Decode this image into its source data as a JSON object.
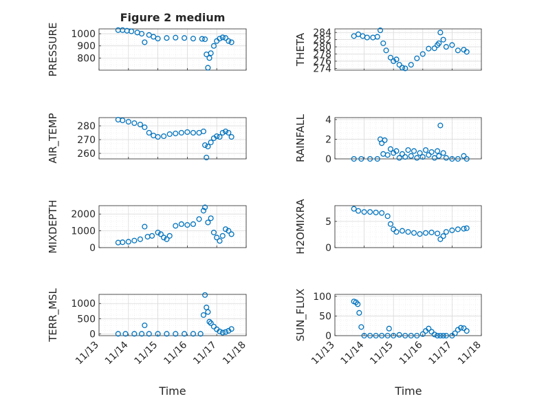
{
  "figure": {
    "title": "Figure 2 medium",
    "x_ticks": [
      "11/13",
      "11/14",
      "11/15",
      "11/16",
      "11/17",
      "11/18"
    ],
    "xlabel": "Time",
    "marker_color": "#0072BD",
    "grid": true
  },
  "chart_data": [
    {
      "type": "scatter",
      "title": "Figure 2 medium",
      "ylabel": "PRESSURE",
      "yticks": [
        800,
        900,
        1000
      ],
      "ylim": [
        700,
        1040
      ],
      "xlim": [
        13,
        18
      ],
      "x_ticks": [
        "11/13",
        "11/14",
        "11/15",
        "11/16",
        "11/17",
        "11/18"
      ],
      "series": [
        {
          "x": [
            13.65,
            13.8,
            13.95,
            14.1,
            14.3,
            14.45,
            14.55,
            14.7,
            14.85,
            15.0,
            15.3,
            15.6,
            15.9,
            16.2,
            16.5,
            16.6,
            16.65,
            16.7,
            16.75,
            16.8,
            16.9,
            17.0,
            17.1,
            17.2,
            17.3,
            17.4,
            17.5
          ],
          "y": [
            1030,
            1030,
            1025,
            1020,
            1010,
            1000,
            930,
            990,
            975,
            960,
            965,
            968,
            965,
            960,
            958,
            955,
            830,
            720,
            800,
            840,
            900,
            940,
            960,
            970,
            965,
            940,
            930
          ]
        }
      ]
    },
    {
      "type": "scatter",
      "ylabel": "THETA",
      "yticks": [
        274,
        276,
        278,
        280,
        282,
        284
      ],
      "ylim": [
        273.5,
        285
      ],
      "xlim": [
        13,
        18
      ],
      "x_ticks": [
        "11/13",
        "11/14",
        "11/15",
        "11/16",
        "11/17",
        "11/18"
      ],
      "series": [
        {
          "x": [
            13.65,
            13.8,
            13.95,
            14.1,
            14.3,
            14.45,
            14.55,
            14.65,
            14.75,
            14.9,
            15.0,
            15.1,
            15.2,
            15.3,
            15.4,
            15.6,
            15.8,
            16.0,
            16.2,
            16.4,
            16.5,
            16.55,
            16.6,
            16.7,
            16.8,
            17.0,
            17.2,
            17.4,
            17.5
          ],
          "y": [
            283.0,
            283.5,
            283,
            282.6,
            282.6,
            282.8,
            284.6,
            281,
            279,
            277,
            276,
            276.5,
            275,
            274.2,
            274,
            275,
            276.8,
            278,
            279.5,
            279.6,
            280.5,
            281,
            284,
            282,
            280,
            280.5,
            279,
            279.2,
            278.6
          ]
        }
      ]
    },
    {
      "type": "scatter",
      "ylabel": "AIR_TEMP",
      "yticks": [
        260,
        270,
        280
      ],
      "ylim": [
        256,
        286
      ],
      "xlim": [
        13,
        18
      ],
      "x_ticks": [
        "11/13",
        "11/14",
        "11/15",
        "11/16",
        "11/17",
        "11/18"
      ],
      "series": [
        {
          "x": [
            13.65,
            13.8,
            14.0,
            14.2,
            14.4,
            14.55,
            14.7,
            14.85,
            15.0,
            15.2,
            15.4,
            15.6,
            15.8,
            16.0,
            16.2,
            16.4,
            16.55,
            16.6,
            16.65,
            16.7,
            16.8,
            16.9,
            17.0,
            17.1,
            17.2,
            17.3,
            17.4,
            17.5
          ],
          "y": [
            284.5,
            284,
            283,
            282,
            281,
            279,
            275,
            273,
            272,
            272.5,
            274,
            274.5,
            275,
            275.5,
            275,
            275,
            276,
            266,
            257,
            265,
            268,
            271,
            272.5,
            272,
            275,
            276,
            275,
            272
          ]
        }
      ]
    },
    {
      "type": "scatter",
      "ylabel": "RAINFALL",
      "yticks": [
        0,
        2,
        4
      ],
      "ylim": [
        0,
        4.2
      ],
      "xlim": [
        13,
        18
      ],
      "x_ticks": [
        "11/13",
        "11/14",
        "11/15",
        "11/16",
        "11/17",
        "11/18"
      ],
      "series": [
        {
          "x": [
            13.65,
            13.9,
            14.2,
            14.45,
            14.55,
            14.6,
            14.65,
            14.7,
            14.8,
            14.9,
            15.0,
            15.1,
            15.2,
            15.3,
            15.4,
            15.5,
            15.6,
            15.7,
            15.8,
            15.9,
            16.0,
            16.1,
            16.2,
            16.3,
            16.4,
            16.5,
            16.55,
            16.6,
            16.7,
            16.8,
            17.0,
            17.2,
            17.4,
            17.5
          ],
          "y": [
            0,
            0,
            0,
            0,
            2.0,
            1.6,
            0.5,
            1.9,
            0.4,
            1.0,
            0.6,
            0.8,
            0.1,
            0.5,
            0.2,
            0.9,
            0.3,
            0.8,
            0.1,
            0.6,
            0.2,
            0.9,
            0.4,
            0.7,
            0.1,
            0.8,
            0.3,
            3.4,
            0.6,
            0.1,
            0,
            0,
            0.3,
            0
          ]
        }
      ]
    },
    {
      "type": "scatter",
      "ylabel": "MIXDEPTH",
      "yticks": [
        0,
        1000,
        2000
      ],
      "ylim": [
        0,
        2500
      ],
      "xlim": [
        13,
        18
      ],
      "x_ticks": [
        "11/13",
        "11/14",
        "11/15",
        "11/16",
        "11/17",
        "11/18"
      ],
      "series": [
        {
          "x": [
            13.65,
            13.8,
            14.0,
            14.2,
            14.4,
            14.55,
            14.65,
            14.8,
            15.0,
            15.1,
            15.2,
            15.3,
            15.4,
            15.6,
            15.8,
            16.0,
            16.2,
            16.4,
            16.55,
            16.6,
            16.7,
            16.8,
            16.9,
            17.0,
            17.1,
            17.2,
            17.3,
            17.4,
            17.5
          ],
          "y": [
            300,
            320,
            350,
            420,
            500,
            1250,
            650,
            700,
            900,
            800,
            600,
            500,
            700,
            1300,
            1400,
            1350,
            1400,
            1700,
            2200,
            2400,
            1500,
            1750,
            900,
            600,
            400,
            700,
            1100,
            1000,
            800
          ]
        }
      ]
    },
    {
      "type": "scatter",
      "ylabel": "H2OMIXRA",
      "yticks": [
        0,
        5
      ],
      "ylim": [
        0,
        8
      ],
      "xlim": [
        13,
        18
      ],
      "x_ticks": [
        "11/13",
        "11/14",
        "11/15",
        "11/16",
        "11/17",
        "11/18"
      ],
      "series": [
        {
          "x": [
            13.65,
            13.8,
            14.0,
            14.2,
            14.4,
            14.6,
            14.8,
            14.9,
            15.0,
            15.1,
            15.3,
            15.5,
            15.7,
            15.9,
            16.1,
            16.3,
            16.5,
            16.6,
            16.7,
            16.8,
            17.0,
            17.2,
            17.4,
            17.5
          ],
          "y": [
            7.4,
            7.0,
            6.8,
            6.8,
            6.7,
            6.6,
            6.0,
            4.5,
            3.5,
            3.0,
            3.2,
            3.0,
            2.8,
            2.6,
            2.8,
            2.9,
            2.7,
            1.6,
            2.2,
            3.0,
            3.3,
            3.5,
            3.6,
            3.7
          ]
        }
      ]
    },
    {
      "type": "scatter",
      "ylabel": "TERR_MSL",
      "yticks": [
        0,
        500,
        1000
      ],
      "ylim": [
        -60,
        1300
      ],
      "xlim": [
        13,
        18
      ],
      "x_ticks": [
        "11/13",
        "11/14",
        "11/15",
        "11/16",
        "11/17",
        "11/18"
      ],
      "series": [
        {
          "x": [
            13.65,
            13.9,
            14.2,
            14.45,
            14.55,
            14.7,
            15.0,
            15.3,
            15.6,
            15.9,
            16.2,
            16.45,
            16.55,
            16.6,
            16.65,
            16.7,
            16.75,
            16.8,
            16.9,
            17.0,
            17.1,
            17.2,
            17.3,
            17.4,
            17.5
          ],
          "y": [
            0,
            0,
            0,
            0,
            280,
            0,
            0,
            0,
            0,
            0,
            0,
            0,
            620,
            1280,
            870,
            720,
            400,
            350,
            240,
            150,
            80,
            40,
            60,
            100,
            160
          ]
        }
      ]
    },
    {
      "type": "scatter",
      "ylabel": "SUN_FLUX",
      "yticks": [
        0,
        50,
        100
      ],
      "ylim": [
        0,
        105
      ],
      "xlim": [
        13,
        18
      ],
      "x_ticks": [
        "11/13",
        "11/14",
        "11/15",
        "11/16",
        "11/17",
        "11/18"
      ],
      "series": [
        {
          "x": [
            13.65,
            13.72,
            13.78,
            13.83,
            13.9,
            14.0,
            14.2,
            14.4,
            14.6,
            14.8,
            14.85,
            15.0,
            15.2,
            15.4,
            15.6,
            15.8,
            16.0,
            16.1,
            16.2,
            16.3,
            16.4,
            16.5,
            16.6,
            16.7,
            16.8,
            17.0,
            17.1,
            17.2,
            17.3,
            17.4,
            17.5
          ],
          "y": [
            87,
            85,
            80,
            58,
            22,
            0,
            0,
            0,
            0,
            0,
            18,
            0,
            2,
            0,
            0,
            0,
            4,
            12,
            18,
            10,
            3,
            0,
            0,
            0,
            0,
            0,
            6,
            15,
            20,
            19,
            12
          ]
        }
      ]
    }
  ]
}
